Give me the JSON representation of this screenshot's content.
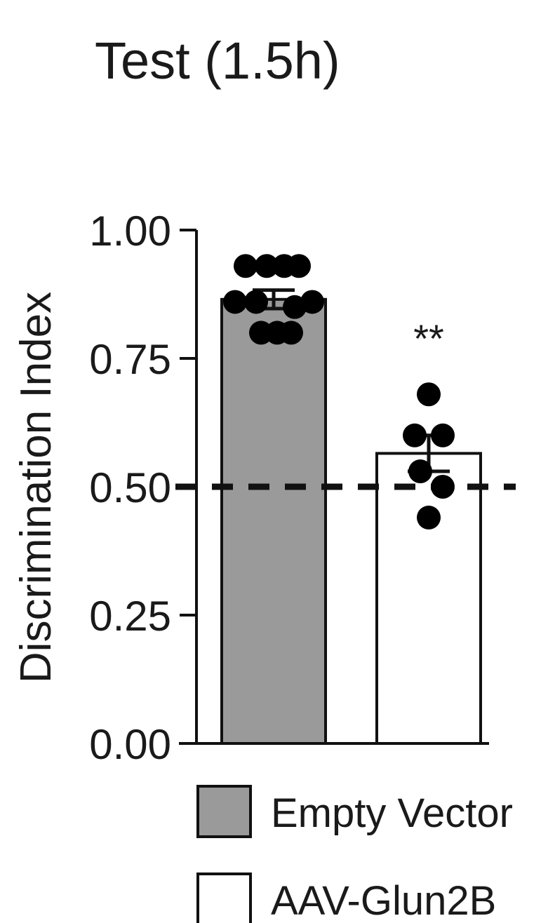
{
  "chart_data": {
    "type": "bar",
    "title": "Test (1.5h)",
    "xlabel": "",
    "ylabel": "Discrimination Index",
    "ylim": [
      0,
      1
    ],
    "yticks": [
      "0.00",
      "0.25",
      "0.50",
      "0.75",
      "1.00"
    ],
    "yticks_values": [
      0,
      0.25,
      0.5,
      0.75,
      1.0
    ],
    "reference_line": 0.5,
    "categories": [
      "Empty Vector",
      "AAV-Glun2B"
    ],
    "series": [
      {
        "name": "Empty Vector",
        "color": "#9a9a9a",
        "mean": 0.865,
        "sem": 0.018,
        "points": [
          0.93,
          0.93,
          0.93,
          0.93,
          0.86,
          0.86,
          0.85,
          0.86,
          0.8,
          0.8,
          0.8
        ],
        "significance": ""
      },
      {
        "name": "AAV-Glun2B",
        "color": "#ffffff",
        "mean": 0.565,
        "sem": 0.035,
        "points": [
          0.68,
          0.6,
          0.6,
          0.53,
          0.5,
          0.44
        ],
        "significance": "**"
      }
    ],
    "legend": {
      "placement": "bottom",
      "entries": [
        "Empty Vector",
        "AAV-Glun2B"
      ]
    }
  }
}
